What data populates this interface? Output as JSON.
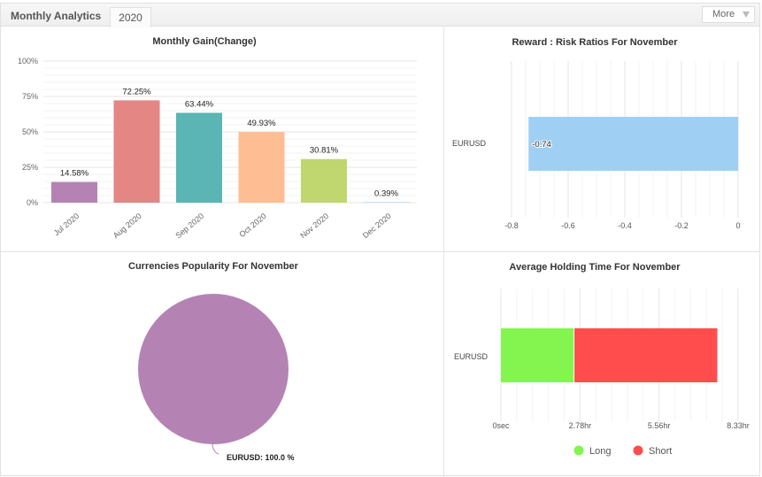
{
  "header": {
    "title": "Monthly Analytics",
    "tab": "2020",
    "more_label": "More"
  },
  "chart_data": [
    {
      "id": "monthly_gain",
      "type": "bar",
      "title": "Monthly Gain(Change)",
      "categories": [
        "Jul 2020",
        "Aug 2020",
        "Sep 2020",
        "Oct 2020",
        "Nov 2020",
        "Dec 2020"
      ],
      "values": [
        14.58,
        72.25,
        63.44,
        49.93,
        30.81,
        0.39
      ],
      "labels": [
        "14.58%",
        "72.25%",
        "63.44%",
        "49.93%",
        "30.81%",
        "0.39%"
      ],
      "colors": [
        "#b483b4",
        "#e38684",
        "#5ab5b4",
        "#ffbd94",
        "#bfd76e",
        "#9fd0f4"
      ],
      "yticks": [
        "0%",
        "25%",
        "50%",
        "75%",
        "100%"
      ],
      "ylim": [
        0,
        100
      ],
      "xlabel": "",
      "ylabel": "",
      "grid": true
    },
    {
      "id": "reward_risk",
      "type": "bar",
      "orientation": "horizontal",
      "title": "Reward : Risk Ratios For November",
      "categories": [
        "EURUSD"
      ],
      "values": [
        -0.74
      ],
      "labels": [
        "-0.74"
      ],
      "color": "#9fd0f4",
      "xticks": [
        "-0.8",
        "-0.6",
        "-0.4",
        "-0.2",
        "0"
      ],
      "xlim": [
        -0.8,
        0
      ],
      "grid": true
    },
    {
      "id": "currencies_popularity",
      "type": "pie",
      "title": "Currencies Popularity For November",
      "slices": [
        {
          "name": "EURUSD",
          "value": 100.0,
          "label": "EURUSD: 100.0 %",
          "color": "#b483b4"
        }
      ]
    },
    {
      "id": "holding_time",
      "type": "bar",
      "orientation": "horizontal",
      "stacked": true,
      "title": "Average Holding Time For November",
      "categories": [
        "EURUSD"
      ],
      "unit": "hr",
      "series": [
        {
          "name": "Long",
          "values": [
            2.55
          ],
          "color": "#84f54f"
        },
        {
          "name": "Short",
          "values": [
            5.05
          ],
          "color": "#ff4d4d"
        }
      ],
      "xticks": [
        "0sec",
        "2.78hr",
        "5.56hr",
        "8.33hr"
      ],
      "xlim": [
        0,
        8.33
      ],
      "legend": "bottom",
      "grid": true
    }
  ]
}
